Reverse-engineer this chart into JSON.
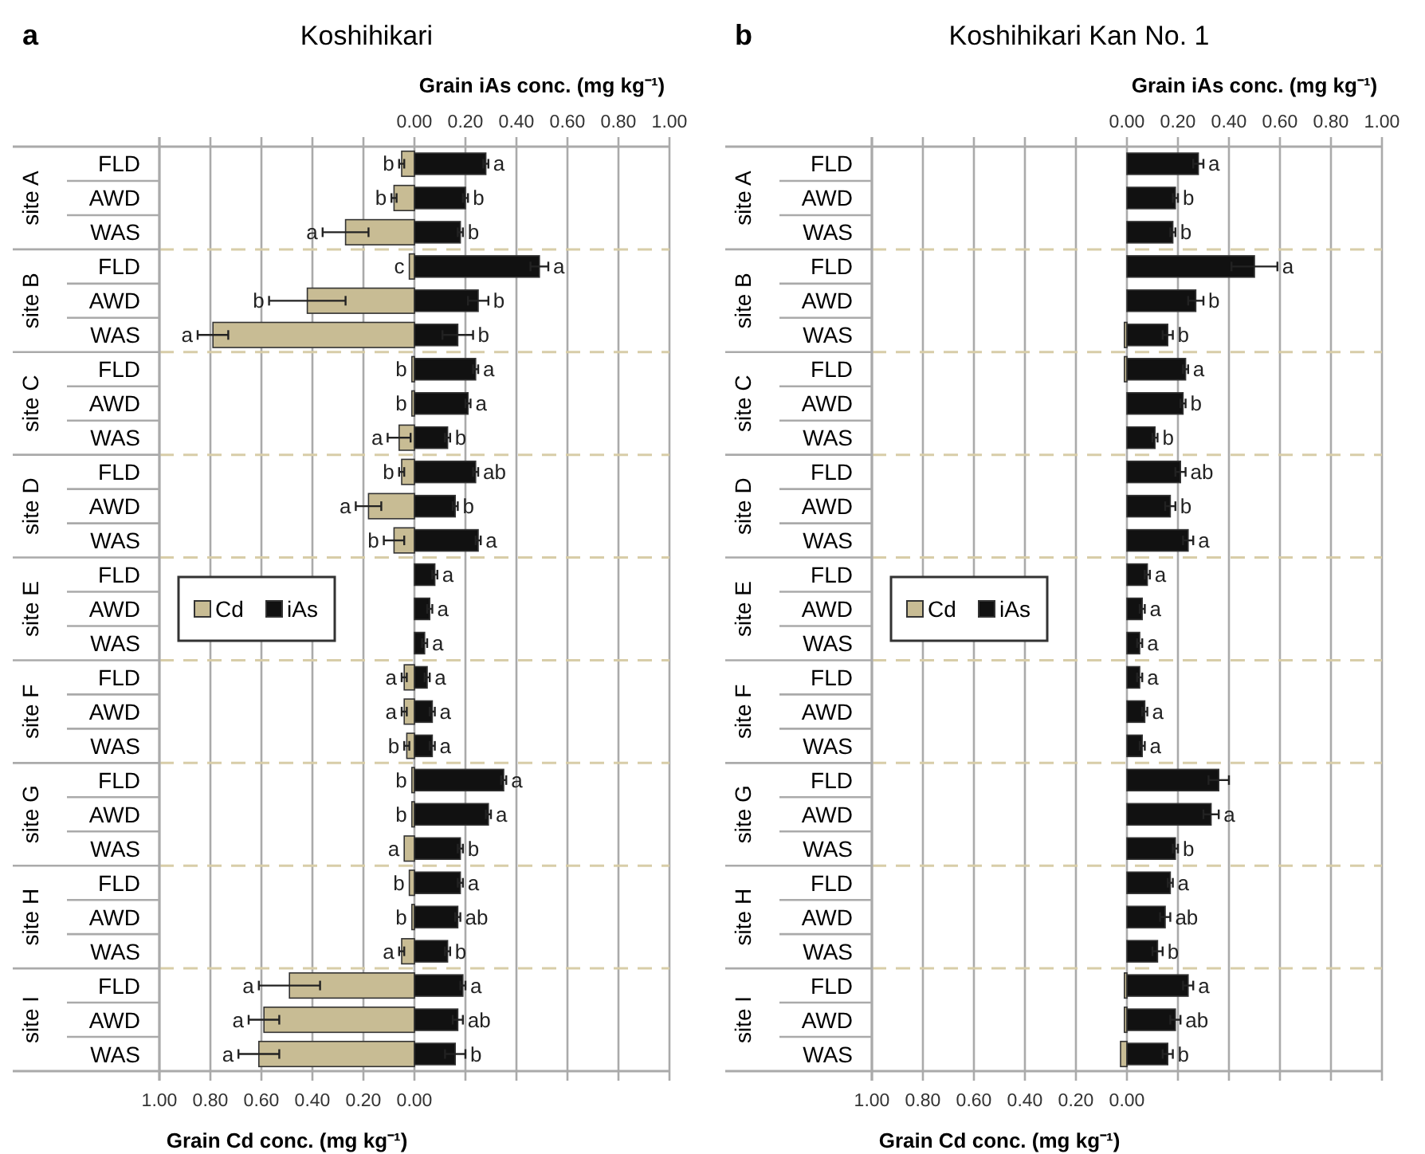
{
  "chart_data": [
    {
      "type": "bar",
      "orientation": "horizontal",
      "title": "Koshihikari",
      "xlabel": "Grain Cd conc. (mg kg⁻¹)",
      "x2label": "Grain iAs conc. (mg kg⁻¹)",
      "annotations": [
        "a",
        "site A",
        "site B",
        "site C",
        "site D",
        "site E",
        "site F",
        "site G",
        "site H",
        "site I"
      ],
      "categories": [
        "FLD",
        "AWD",
        "WAS",
        "FLD",
        "AWD",
        "WAS",
        "FLD",
        "AWD",
        "WAS",
        "FLD",
        "AWD",
        "WAS",
        "FLD",
        "AWD",
        "WAS",
        "FLD",
        "AWD",
        "WAS",
        "FLD",
        "AWD",
        "WAS",
        "FLD",
        "AWD",
        "WAS",
        "FLD",
        "AWD",
        "WAS"
      ],
      "xlim": [
        1,
        -1
      ],
      "xticks": [
        {
          "value": 1,
          "label": "1.00"
        },
        {
          "value": 0.8,
          "label": "0.80"
        },
        {
          "value": 0.6,
          "label": "0.60"
        },
        {
          "value": 0.4,
          "label": "0.40"
        },
        {
          "value": 0.2,
          "label": "0.20"
        },
        {
          "value": 0,
          "label": "0.00"
        },
        {
          "value": -0.2,
          "label": null
        },
        {
          "value": -0.4,
          "label": null
        },
        {
          "value": -0.6,
          "label": null
        },
        {
          "value": -0.8,
          "label": null
        },
        {
          "value": -1,
          "label": null
        }
      ],
      "x2lim": [
        -1,
        1
      ],
      "x2ticks": [
        {
          "value": 0,
          "label": "0.00"
        },
        {
          "value": 0.2,
          "label": "0.20"
        },
        {
          "value": 0.4,
          "label": "0.40"
        },
        {
          "value": 0.6,
          "label": "0.60"
        },
        {
          "value": 0.8,
          "label": "0.80"
        },
        {
          "value": 1,
          "label": "1.00"
        }
      ],
      "grid": "x",
      "legend": "left",
      "series": [
        {
          "name": "Cd",
          "color": "#c8bc94",
          "values": [
            0.05,
            0.08,
            0.27,
            0.02,
            0.42,
            0.79,
            0.01,
            0.01,
            0.06,
            0.05,
            0.18,
            0.08,
            null,
            null,
            null,
            0.04,
            0.04,
            0.03,
            0.01,
            0.01,
            0.04,
            0.02,
            0.01,
            0.05,
            0.49,
            0.59,
            0.61
          ],
          "errors": [
            0.01,
            0.01,
            0.09,
            null,
            0.15,
            0.06,
            null,
            null,
            0.045,
            0.01,
            0.05,
            0.04,
            null,
            null,
            null,
            0.01,
            0.01,
            0.01,
            null,
            null,
            null,
            null,
            null,
            0.01,
            0.12,
            0.06,
            0.08
          ],
          "value_labels": [
            "b",
            "b",
            "a",
            "c",
            "b",
            "a",
            "b",
            "b",
            "a",
            "b",
            "a",
            "b",
            null,
            null,
            null,
            "a",
            "a",
            "b",
            "b",
            "b",
            "a",
            "b",
            "b",
            "a",
            "a",
            "a",
            "a"
          ]
        },
        {
          "name": "iAs",
          "color": "#111111",
          "axis": "x2",
          "values": [
            0.28,
            0.2,
            0.18,
            0.49,
            0.25,
            0.17,
            0.24,
            0.21,
            0.13,
            0.24,
            0.16,
            0.25,
            0.08,
            0.06,
            0.04,
            0.05,
            0.07,
            0.07,
            0.35,
            0.29,
            0.18,
            0.18,
            0.17,
            0.13,
            0.19,
            0.17,
            0.16
          ],
          "errors": [
            0.01,
            0.01,
            0.01,
            0.035,
            0.04,
            0.06,
            0.01,
            0.01,
            0.01,
            0.01,
            0.01,
            0.01,
            0.01,
            0.01,
            0.01,
            0.01,
            0.01,
            0.01,
            0.01,
            0.01,
            0.01,
            0.01,
            0.01,
            0.01,
            0.01,
            0.02,
            0.04
          ],
          "value_labels": [
            "a",
            "b",
            "b",
            "a",
            "b",
            "b",
            "a",
            "a",
            "b",
            "ab",
            "b",
            "a",
            "a",
            "a",
            "a",
            "a",
            "a",
            "a",
            "a",
            "a",
            "b",
            "a",
            "ab",
            "b",
            "a",
            "ab",
            "b"
          ]
        }
      ]
    },
    {
      "type": "bar",
      "orientation": "horizontal",
      "title": "Koshihikari Kan No. 1",
      "xlabel": "Grain Cd conc. (mg kg⁻¹)",
      "x2label": "Grain iAs conc. (mg kg⁻¹)",
      "annotations": [
        "b",
        "site A",
        "site B",
        "site C",
        "site D",
        "site E",
        "site F",
        "site G",
        "site H",
        "site I"
      ],
      "categories": [
        "FLD",
        "AWD",
        "WAS",
        "FLD",
        "AWD",
        "WAS",
        "FLD",
        "AWD",
        "WAS",
        "FLD",
        "AWD",
        "WAS",
        "FLD",
        "AWD",
        "WAS",
        "FLD",
        "AWD",
        "WAS",
        "FLD",
        "AWD",
        "WAS",
        "FLD",
        "AWD",
        "WAS",
        "FLD",
        "AWD",
        "WAS"
      ],
      "xlim": [
        1,
        -1
      ],
      "xticks": [
        {
          "value": 1,
          "label": "1.00"
        },
        {
          "value": 0.8,
          "label": "0.80"
        },
        {
          "value": 0.6,
          "label": "0.60"
        },
        {
          "value": 0.4,
          "label": "0.40"
        },
        {
          "value": 0.2,
          "label": "0.20"
        },
        {
          "value": 0,
          "label": "0.00"
        },
        {
          "value": -0.2,
          "label": null
        },
        {
          "value": -0.4,
          "label": null
        },
        {
          "value": -0.6,
          "label": null
        },
        {
          "value": -0.8,
          "label": null
        },
        {
          "value": -1,
          "label": null
        }
      ],
      "x2lim": [
        -1,
        1
      ],
      "x2ticks": [
        {
          "value": 0,
          "label": "0.00"
        },
        {
          "value": 0.2,
          "label": "0.20"
        },
        {
          "value": 0.4,
          "label": "0.40"
        },
        {
          "value": 0.6,
          "label": "0.60"
        },
        {
          "value": 0.8,
          "label": "0.80"
        },
        {
          "value": 1,
          "label": "1.00"
        }
      ],
      "grid": "x",
      "legend": "left",
      "series": [
        {
          "name": "Cd",
          "color": "#c8bc94",
          "values": [
            null,
            null,
            null,
            null,
            null,
            0.01,
            0.01,
            null,
            null,
            null,
            null,
            null,
            null,
            null,
            null,
            null,
            null,
            null,
            null,
            null,
            null,
            null,
            null,
            null,
            0.01,
            0.01,
            0.025
          ],
          "errors": [
            null,
            null,
            null,
            null,
            null,
            null,
            null,
            null,
            null,
            null,
            null,
            null,
            null,
            null,
            null,
            null,
            null,
            null,
            null,
            null,
            null,
            null,
            null,
            null,
            null,
            null,
            null
          ],
          "value_labels": [
            null,
            null,
            null,
            null,
            null,
            null,
            null,
            null,
            null,
            null,
            null,
            null,
            null,
            null,
            null,
            null,
            null,
            null,
            null,
            null,
            null,
            null,
            null,
            null,
            null,
            null,
            null
          ]
        },
        {
          "name": "iAs",
          "color": "#111111",
          "axis": "x2",
          "values": [
            0.28,
            0.19,
            0.18,
            0.5,
            0.27,
            0.16,
            0.23,
            0.22,
            0.11,
            0.21,
            0.17,
            0.24,
            0.08,
            0.06,
            0.05,
            0.05,
            0.07,
            0.06,
            0.36,
            0.33,
            0.19,
            0.17,
            0.15,
            0.12,
            0.24,
            0.19,
            0.16
          ],
          "errors": [
            0.02,
            0.01,
            0.01,
            0.09,
            0.03,
            0.02,
            0.01,
            0.01,
            0.01,
            0.02,
            0.02,
            0.02,
            0.01,
            0.01,
            0.01,
            0.01,
            0.01,
            0.01,
            0.04,
            0.03,
            0.01,
            0.01,
            0.02,
            0.02,
            0.02,
            0.02,
            0.02
          ],
          "value_labels": [
            "a",
            "b",
            "b",
            "a",
            "b",
            "b",
            "a",
            "b",
            "b",
            "ab",
            "b",
            "a",
            "a",
            "a",
            "a",
            "a",
            "a",
            "a",
            null,
            "a",
            "b",
            "a",
            "ab",
            "b",
            "a",
            "ab",
            "b"
          ]
        }
      ]
    }
  ]
}
